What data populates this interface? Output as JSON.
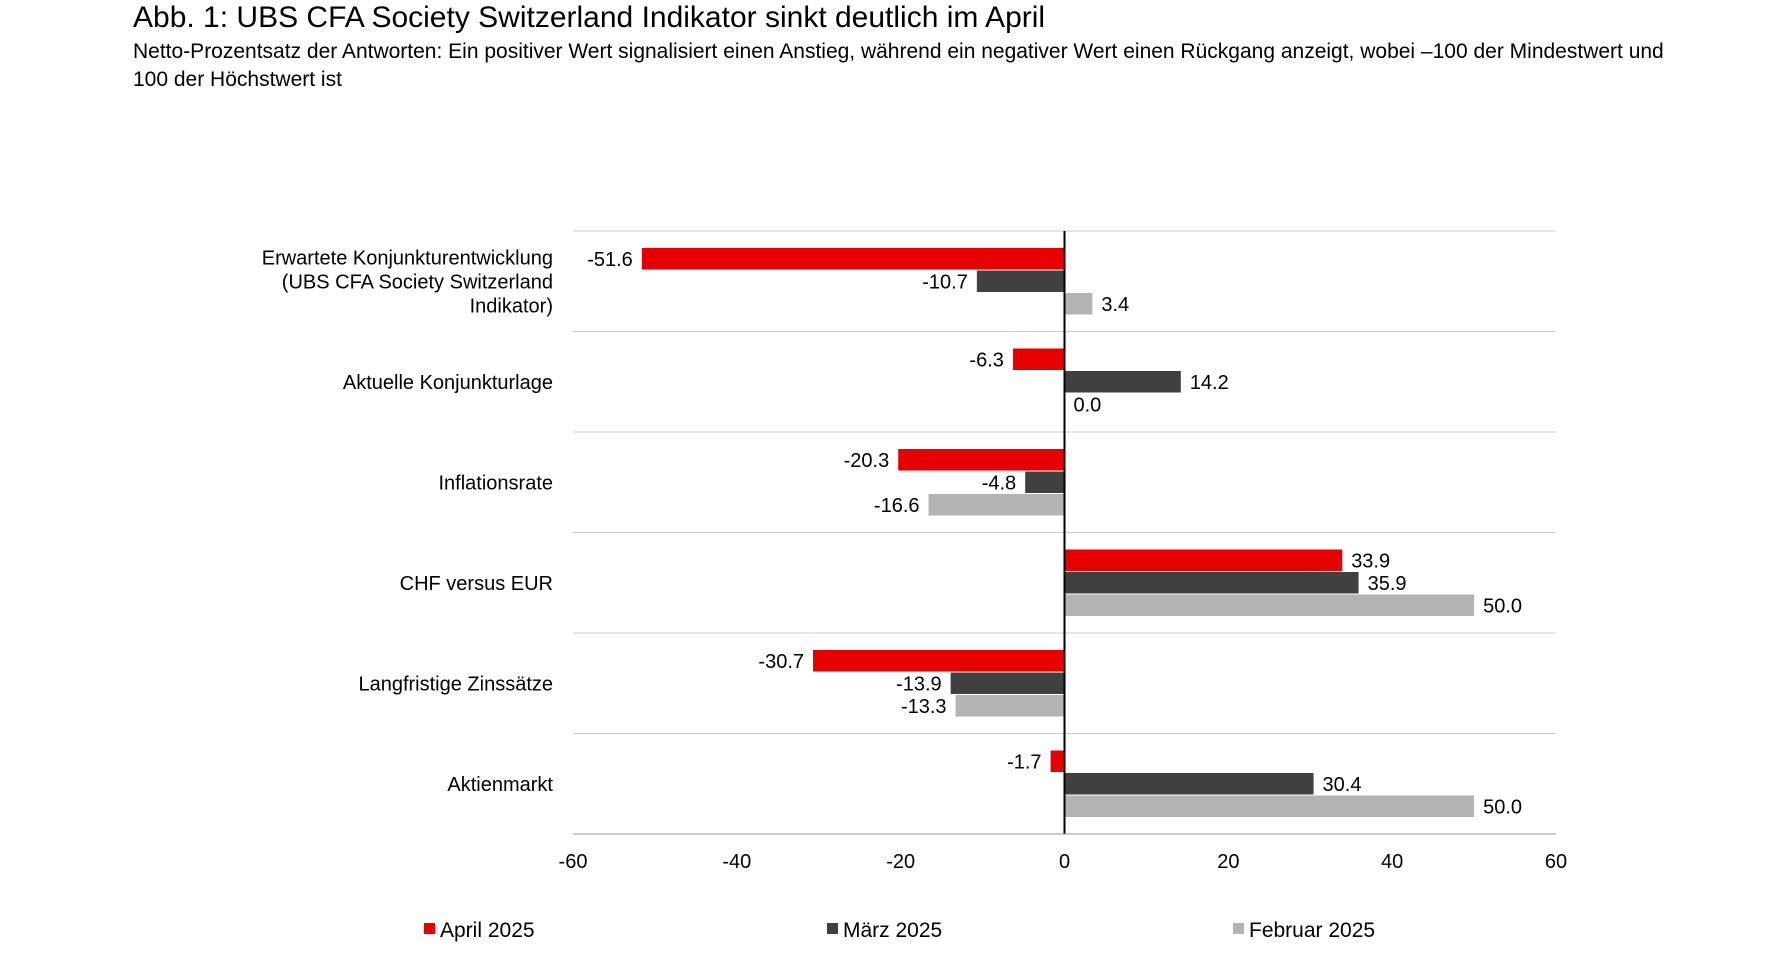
{
  "title": "Abb. 1: UBS CFA Society Switzerland Indikator sinkt deutlich im April",
  "subtitle": "Netto-Prozentsatz der Antworten: Ein positiver Wert signalisiert einen Anstieg, während ein negativer Wert einen Rückgang anzeigt, wobei –100 der Mindestwert und 100 der Höchstwert ist",
  "chart_data": {
    "type": "bar",
    "orientation": "horizontal",
    "categories": [
      [
        "Erwartete Konjunkturentwicklung",
        "(UBS CFA Society Switzerland",
        "Indikator)"
      ],
      [
        "Aktuelle Konjunkturlage"
      ],
      [
        "Inflationsrate"
      ],
      [
        "CHF versus EUR"
      ],
      [
        "Langfristige Zinssätze"
      ],
      [
        "Aktienmarkt"
      ]
    ],
    "series": [
      {
        "name": "April 2025",
        "color": "#e60000",
        "values": [
          -51.6,
          -6.3,
          -20.3,
          33.9,
          -30.7,
          -1.7
        ],
        "labels": [
          "-51.6",
          "-6.3",
          "-20.3",
          "33.9",
          "-30.7",
          "-1.7"
        ]
      },
      {
        "name": "März 2025",
        "color": "#404040",
        "values": [
          -10.7,
          14.2,
          -4.8,
          35.9,
          -13.9,
          30.4
        ],
        "labels": [
          "-10.7",
          "14.2",
          "-4.8",
          "35.9",
          "-13.9",
          "30.4"
        ]
      },
      {
        "name": "Februar 2025",
        "color": "#b3b3b3",
        "values": [
          3.4,
          0.0,
          -16.6,
          50.0,
          -13.3,
          50.0
        ],
        "labels": [
          "3.4",
          "0.0",
          "-16.6",
          "50.0",
          "-13.3",
          "50.0"
        ]
      }
    ],
    "xlim": [
      -60,
      60
    ],
    "xticks": [
      -60,
      -40,
      -20,
      0,
      20,
      40,
      60
    ],
    "xtick_labels": [
      "-60",
      "-40",
      "-20",
      "0",
      "20",
      "40",
      "60"
    ],
    "grid": "horizontal separators between categories",
    "legend_position": "bottom"
  }
}
